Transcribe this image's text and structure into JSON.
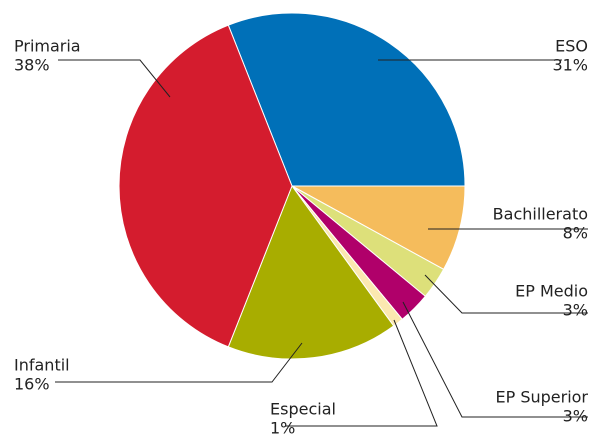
{
  "chart_data": {
    "type": "pie",
    "categories": [
      "ESO",
      "Bachillerato",
      "EP Medio",
      "EP Superior",
      "Especial",
      "Infantil",
      "Primaria"
    ],
    "values": [
      31,
      8,
      3,
      3,
      1,
      16,
      38
    ],
    "value_labels": [
      "31%",
      "8%",
      "3%",
      "3%",
      "1%",
      "16%",
      "38%"
    ],
    "colors": [
      "#0070b8",
      "#f5bc5c",
      "#dde07a",
      "#b0006a",
      "#fbe8b0",
      "#a8ad00",
      "#d41c2e"
    ]
  }
}
